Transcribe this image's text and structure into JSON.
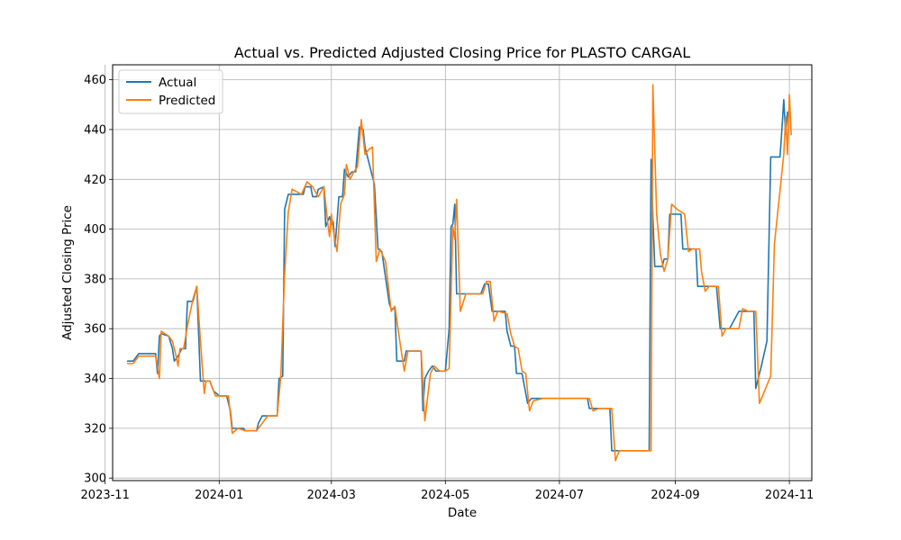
{
  "chart_data": {
    "type": "line",
    "title": "Actual vs. Predicted Adjusted Closing Price for PLASTO CARGAL",
    "xlabel": "Date",
    "ylabel": "Adjusted Closing Price",
    "xlim": [
      "2023-11-05",
      "2024-11-13"
    ],
    "ylim": [
      299,
      466
    ],
    "x_ticks": [
      {
        "date": "2023-11-01",
        "label": "2023-11"
      },
      {
        "date": "2024-01-01",
        "label": "2024-01"
      },
      {
        "date": "2024-03-01",
        "label": "2024-03"
      },
      {
        "date": "2024-05-01",
        "label": "2024-05"
      },
      {
        "date": "2024-07-01",
        "label": "2024-07"
      },
      {
        "date": "2024-09-01",
        "label": "2024-09"
      },
      {
        "date": "2024-11-01",
        "label": "2024-11"
      }
    ],
    "y_ticks": [
      300,
      320,
      340,
      360,
      380,
      400,
      420,
      440,
      460
    ],
    "grid": true,
    "legend_position": "upper-left",
    "series": [
      {
        "name": "Actual",
        "color": "#1f77b4",
        "points": [
          [
            "2023-11-13",
            347
          ],
          [
            "2023-11-16",
            347
          ],
          [
            "2023-11-19",
            350
          ],
          [
            "2023-11-23",
            350
          ],
          [
            "2023-11-28",
            350
          ],
          [
            "2023-11-29",
            342
          ],
          [
            "2023-11-30",
            357
          ],
          [
            "2023-12-01",
            358
          ],
          [
            "2023-12-05",
            357
          ],
          [
            "2023-12-07",
            352
          ],
          [
            "2023-12-08",
            347
          ],
          [
            "2023-12-10",
            349
          ],
          [
            "2023-12-12",
            352
          ],
          [
            "2023-12-14",
            352
          ],
          [
            "2023-12-15",
            371
          ],
          [
            "2023-12-18",
            371
          ],
          [
            "2023-12-20",
            377
          ],
          [
            "2023-12-22",
            339
          ],
          [
            "2023-12-25",
            339
          ],
          [
            "2023-12-27",
            339
          ],
          [
            "2023-12-29",
            335
          ],
          [
            "2024-01-01",
            333
          ],
          [
            "2024-01-05",
            333
          ],
          [
            "2024-01-07",
            327
          ],
          [
            "2024-01-08",
            320
          ],
          [
            "2024-01-14",
            320
          ],
          [
            "2024-01-15",
            319
          ],
          [
            "2024-01-21",
            319
          ],
          [
            "2024-01-22",
            322
          ],
          [
            "2024-01-24",
            325
          ],
          [
            "2024-02-01",
            325
          ],
          [
            "2024-02-02",
            340
          ],
          [
            "2024-02-04",
            341
          ],
          [
            "2024-02-05",
            408
          ],
          [
            "2024-02-07",
            414
          ],
          [
            "2024-02-12",
            414
          ],
          [
            "2024-02-15",
            414
          ],
          [
            "2024-02-16",
            417
          ],
          [
            "2024-02-19",
            417
          ],
          [
            "2024-02-20",
            413
          ],
          [
            "2024-02-22",
            413
          ],
          [
            "2024-02-23",
            416
          ],
          [
            "2024-02-26",
            417
          ],
          [
            "2024-02-27",
            401
          ],
          [
            "2024-02-29",
            405
          ],
          [
            "2024-03-01",
            402
          ],
          [
            "2024-03-02",
            403
          ],
          [
            "2024-03-03",
            393
          ],
          [
            "2024-03-05",
            413
          ],
          [
            "2024-03-07",
            413
          ],
          [
            "2024-03-08",
            424
          ],
          [
            "2024-03-10",
            421
          ],
          [
            "2024-03-11",
            422
          ],
          [
            "2024-03-12",
            423
          ],
          [
            "2024-03-14",
            423
          ],
          [
            "2024-03-16",
            441
          ],
          [
            "2024-03-18",
            440
          ],
          [
            "2024-03-19",
            433
          ],
          [
            "2024-03-24",
            418
          ],
          [
            "2024-03-26",
            392
          ],
          [
            "2024-03-28",
            391
          ],
          [
            "2024-04-01",
            370
          ],
          [
            "2024-04-02",
            368
          ],
          [
            "2024-04-04",
            368
          ],
          [
            "2024-04-05",
            347
          ],
          [
            "2024-04-07",
            347
          ],
          [
            "2024-04-09",
            347
          ],
          [
            "2024-04-10",
            351
          ],
          [
            "2024-04-13",
            351
          ],
          [
            "2024-04-18",
            351
          ],
          [
            "2024-04-19",
            327
          ],
          [
            "2024-04-20",
            340
          ],
          [
            "2024-04-22",
            343
          ],
          [
            "2024-04-24",
            345
          ],
          [
            "2024-04-26",
            343
          ],
          [
            "2024-05-01",
            343
          ],
          [
            "2024-05-03",
            360
          ],
          [
            "2024-05-04",
            401
          ],
          [
            "2024-05-05",
            402
          ],
          [
            "2024-05-06",
            410
          ],
          [
            "2024-05-07",
            374
          ],
          [
            "2024-05-10",
            374
          ],
          [
            "2024-05-14",
            374
          ],
          [
            "2024-05-20",
            374
          ],
          [
            "2024-05-22",
            378
          ],
          [
            "2024-05-24",
            378
          ],
          [
            "2024-05-26",
            367
          ],
          [
            "2024-05-28",
            367
          ],
          [
            "2024-06-02",
            367
          ],
          [
            "2024-06-03",
            359
          ],
          [
            "2024-06-05",
            353
          ],
          [
            "2024-06-06",
            353
          ],
          [
            "2024-06-07",
            353
          ],
          [
            "2024-06-08",
            342
          ],
          [
            "2024-06-11",
            342
          ],
          [
            "2024-06-14",
            330
          ],
          [
            "2024-06-16",
            332
          ],
          [
            "2024-06-20",
            332
          ],
          [
            "2024-07-01",
            332
          ],
          [
            "2024-07-07",
            332
          ],
          [
            "2024-07-16",
            332
          ],
          [
            "2024-07-17",
            328
          ],
          [
            "2024-07-19",
            328
          ],
          [
            "2024-07-28",
            328
          ],
          [
            "2024-07-29",
            311
          ],
          [
            "2024-08-02",
            311
          ],
          [
            "2024-08-04",
            311
          ],
          [
            "2024-08-05",
            311
          ],
          [
            "2024-08-10",
            311
          ],
          [
            "2024-08-18",
            311
          ],
          [
            "2024-08-19",
            428
          ],
          [
            "2024-08-20",
            405
          ],
          [
            "2024-08-21",
            385
          ],
          [
            "2024-08-25",
            385
          ],
          [
            "2024-08-26",
            388
          ],
          [
            "2024-08-28",
            388
          ],
          [
            "2024-08-29",
            406
          ],
          [
            "2024-09-02",
            406
          ],
          [
            "2024-09-04",
            406
          ],
          [
            "2024-09-05",
            392
          ],
          [
            "2024-09-07",
            392
          ],
          [
            "2024-09-08",
            392
          ],
          [
            "2024-09-12",
            392
          ],
          [
            "2024-09-13",
            377
          ],
          [
            "2024-09-16",
            377
          ],
          [
            "2024-09-18",
            377
          ],
          [
            "2024-09-23",
            377
          ],
          [
            "2024-09-25",
            360
          ],
          [
            "2024-09-27",
            360
          ],
          [
            "2024-09-30",
            360
          ],
          [
            "2024-10-05",
            367
          ],
          [
            "2024-10-10",
            367
          ],
          [
            "2024-10-13",
            367
          ],
          [
            "2024-10-14",
            336
          ],
          [
            "2024-10-17",
            345
          ],
          [
            "2024-10-20",
            355
          ],
          [
            "2024-10-22",
            429
          ],
          [
            "2024-10-25",
            429
          ],
          [
            "2024-10-27",
            429
          ],
          [
            "2024-10-28",
            440
          ],
          [
            "2024-10-29",
            452
          ],
          [
            "2024-10-30",
            438
          ],
          [
            "2024-10-31",
            447
          ]
        ]
      },
      {
        "name": "Predicted",
        "color": "#ff7f0e",
        "points": [
          [
            "2023-11-13",
            346
          ],
          [
            "2023-11-16",
            346
          ],
          [
            "2023-11-19",
            349
          ],
          [
            "2023-11-24",
            349
          ],
          [
            "2023-11-28",
            349
          ],
          [
            "2023-11-30",
            340
          ],
          [
            "2023-12-01",
            359
          ],
          [
            "2023-12-05",
            357
          ],
          [
            "2023-12-07",
            355
          ],
          [
            "2023-12-09",
            349
          ],
          [
            "2023-12-10",
            345
          ],
          [
            "2023-12-11",
            352
          ],
          [
            "2023-12-13",
            352
          ],
          [
            "2023-12-15",
            361
          ],
          [
            "2023-12-18",
            372
          ],
          [
            "2023-12-20",
            377
          ],
          [
            "2023-12-22",
            355
          ],
          [
            "2023-12-24",
            334
          ],
          [
            "2023-12-25",
            339
          ],
          [
            "2023-12-27",
            339
          ],
          [
            "2023-12-30",
            333
          ],
          [
            "2024-01-02",
            333
          ],
          [
            "2024-01-06",
            333
          ],
          [
            "2024-01-08",
            318
          ],
          [
            "2024-01-11",
            320
          ],
          [
            "2024-01-15",
            319
          ],
          [
            "2024-01-21",
            319
          ],
          [
            "2024-01-24",
            322
          ],
          [
            "2024-01-27",
            325
          ],
          [
            "2024-02-01",
            325
          ],
          [
            "2024-02-03",
            341
          ],
          [
            "2024-02-05",
            382
          ],
          [
            "2024-02-07",
            407
          ],
          [
            "2024-02-09",
            416
          ],
          [
            "2024-02-14",
            414
          ],
          [
            "2024-02-17",
            419
          ],
          [
            "2024-02-20",
            417
          ],
          [
            "2024-02-23",
            413
          ],
          [
            "2024-02-26",
            417
          ],
          [
            "2024-02-28",
            403
          ],
          [
            "2024-02-29",
            397
          ],
          [
            "2024-03-01",
            406
          ],
          [
            "2024-03-02",
            400
          ],
          [
            "2024-03-04",
            391
          ],
          [
            "2024-03-06",
            410
          ],
          [
            "2024-03-08",
            414
          ],
          [
            "2024-03-09",
            426
          ],
          [
            "2024-03-11",
            420
          ],
          [
            "2024-03-13",
            423
          ],
          [
            "2024-03-15",
            425
          ],
          [
            "2024-03-17",
            444
          ],
          [
            "2024-03-19",
            430
          ],
          [
            "2024-03-21",
            432
          ],
          [
            "2024-03-23",
            433
          ],
          [
            "2024-03-25",
            387
          ],
          [
            "2024-03-27",
            392
          ],
          [
            "2024-03-30",
            387
          ],
          [
            "2024-04-02",
            367
          ],
          [
            "2024-04-04",
            369
          ],
          [
            "2024-04-06",
            358
          ],
          [
            "2024-04-09",
            343
          ],
          [
            "2024-04-11",
            351
          ],
          [
            "2024-04-14",
            351
          ],
          [
            "2024-04-18",
            351
          ],
          [
            "2024-04-20",
            323
          ],
          [
            "2024-04-23",
            342
          ],
          [
            "2024-04-25",
            345
          ],
          [
            "2024-04-28",
            343
          ],
          [
            "2024-05-01",
            343
          ],
          [
            "2024-05-03",
            344
          ],
          [
            "2024-05-05",
            401
          ],
          [
            "2024-05-06",
            396
          ],
          [
            "2024-05-07",
            412
          ],
          [
            "2024-05-09",
            367
          ],
          [
            "2024-05-12",
            374
          ],
          [
            "2024-05-16",
            374
          ],
          [
            "2024-05-21",
            374
          ],
          [
            "2024-05-23",
            379
          ],
          [
            "2024-05-25",
            379
          ],
          [
            "2024-05-27",
            363
          ],
          [
            "2024-05-29",
            367
          ],
          [
            "2024-06-03",
            366
          ],
          [
            "2024-06-05",
            358
          ],
          [
            "2024-06-07",
            353
          ],
          [
            "2024-06-09",
            352
          ],
          [
            "2024-06-11",
            343
          ],
          [
            "2024-06-13",
            342
          ],
          [
            "2024-06-15",
            327
          ],
          [
            "2024-06-17",
            331
          ],
          [
            "2024-06-22",
            332
          ],
          [
            "2024-07-01",
            332
          ],
          [
            "2024-07-10",
            332
          ],
          [
            "2024-07-17",
            332
          ],
          [
            "2024-07-19",
            327
          ],
          [
            "2024-07-22",
            328
          ],
          [
            "2024-07-29",
            328
          ],
          [
            "2024-07-31",
            307
          ],
          [
            "2024-08-02",
            311
          ],
          [
            "2024-08-06",
            311
          ],
          [
            "2024-08-12",
            311
          ],
          [
            "2024-08-19",
            311
          ],
          [
            "2024-08-20",
            458
          ],
          [
            "2024-08-22",
            406
          ],
          [
            "2024-08-24",
            390
          ],
          [
            "2024-08-26",
            383
          ],
          [
            "2024-08-28",
            388
          ],
          [
            "2024-08-30",
            410
          ],
          [
            "2024-09-02",
            408
          ],
          [
            "2024-09-06",
            406
          ],
          [
            "2024-09-08",
            391
          ],
          [
            "2024-09-10",
            392
          ],
          [
            "2024-09-14",
            392
          ],
          [
            "2024-09-15",
            383
          ],
          [
            "2024-09-17",
            375
          ],
          [
            "2024-09-19",
            377
          ],
          [
            "2024-09-24",
            377
          ],
          [
            "2024-09-26",
            357
          ],
          [
            "2024-09-28",
            360
          ],
          [
            "2024-10-02",
            360
          ],
          [
            "2024-10-05",
            360
          ],
          [
            "2024-10-07",
            368
          ],
          [
            "2024-10-10",
            367
          ],
          [
            "2024-10-14",
            367
          ],
          [
            "2024-10-16",
            330
          ],
          [
            "2024-10-22",
            341
          ],
          [
            "2024-10-24",
            394
          ],
          [
            "2024-10-29",
            430
          ],
          [
            "2024-10-30",
            445
          ],
          [
            "2024-10-31",
            430
          ],
          [
            "2024-11-01",
            454
          ],
          [
            "2024-11-02",
            438
          ]
        ]
      }
    ]
  }
}
